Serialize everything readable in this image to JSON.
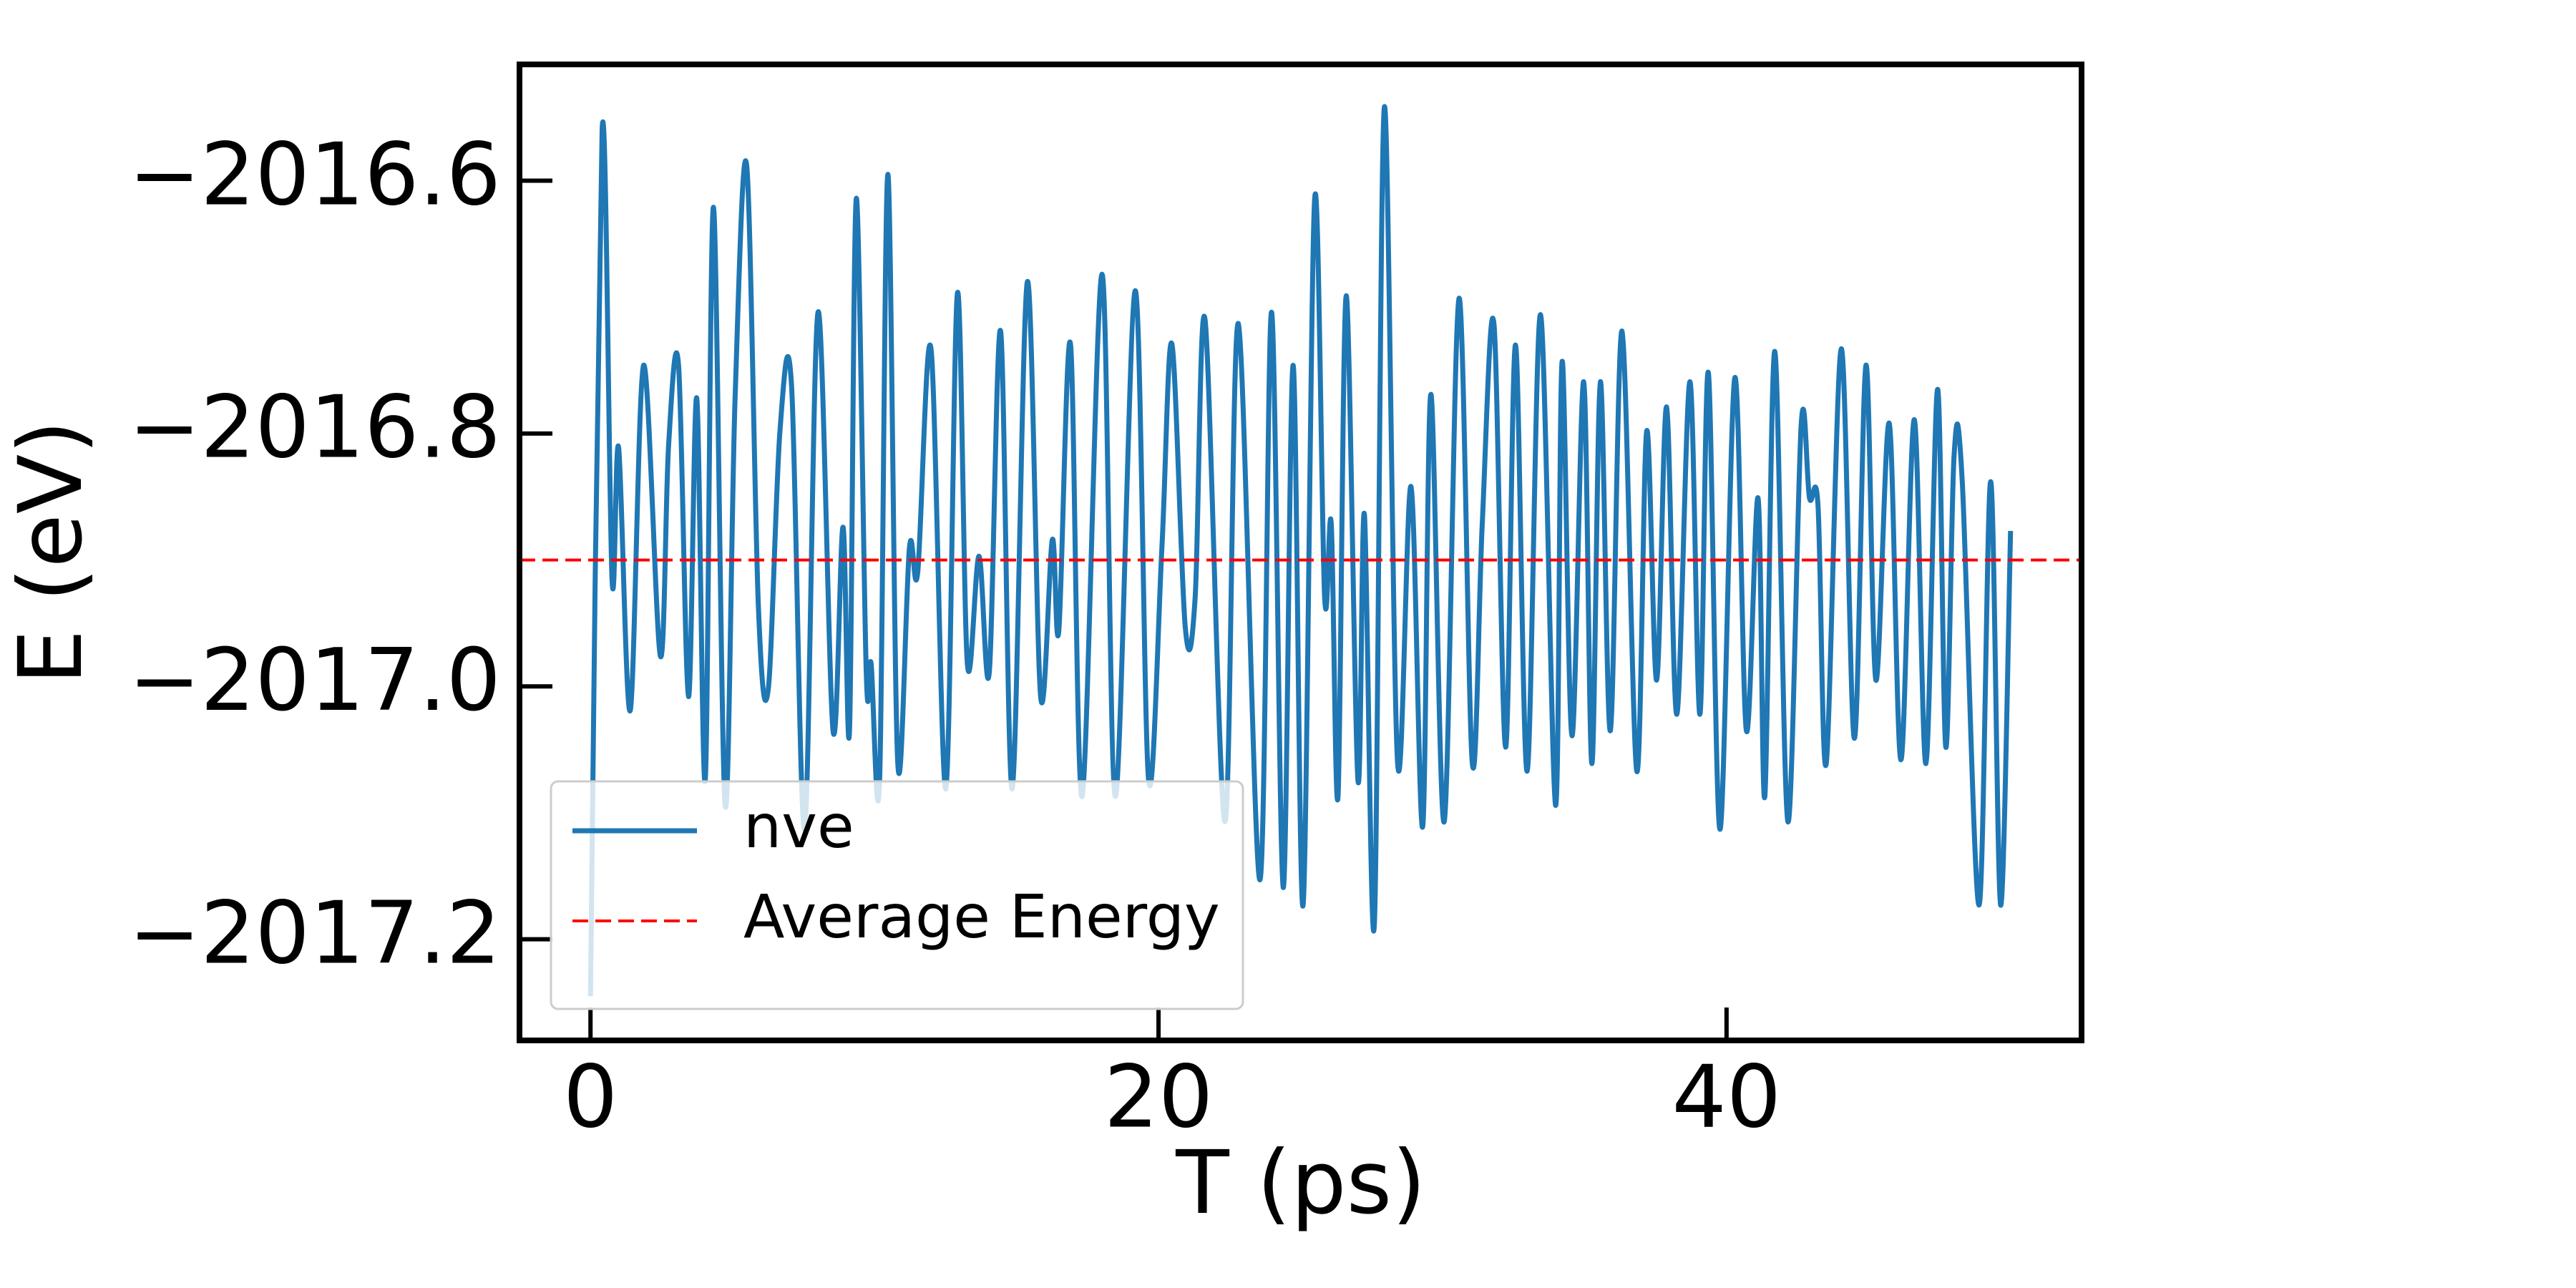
{
  "chart_data": {
    "type": "line",
    "xlabel": "T (ps)",
    "ylabel": "E (eV)",
    "xlim": [
      -2.5,
      52.5
    ],
    "ylim": [
      -2017.28,
      -2016.508
    ],
    "xticks": [
      0,
      20,
      40
    ],
    "yticks": [
      {
        "value": -2017.2,
        "label": "−2017.2"
      },
      {
        "value": -2017.0,
        "label": "−2017.0"
      },
      {
        "value": -2016.8,
        "label": "−2016.8"
      },
      {
        "value": -2016.6,
        "label": "−2016.6"
      }
    ],
    "legend": "lower left",
    "x": [
      0,
      0.41,
      0.76,
      0.99,
      1.4,
      1.87,
      2.46,
      2.75,
      3.1,
      3.45,
      3.74,
      4.04,
      4.33,
      4.74,
      5.09,
      5.5,
      5.91,
      6.26,
      6.67,
      7.08,
      7.54,
      8.01,
      8.54,
      8.89,
      9.12,
      9.36,
      9.71,
      9.88,
      10.18,
      10.47,
      10.82,
      11.23,
      11.52,
      11.99,
      12.51,
      12.92,
      13.27,
      13.68,
      14.04,
      14.44,
      14.85,
      15.38,
      15.85,
      16.26,
      16.49,
      16.9,
      17.31,
      18.01,
      18.48,
      19.18,
      19.65,
      20.12,
      20.47,
      20.94,
      21.29,
      21.64,
      22.34,
      22.81,
      23.57,
      23.98,
      24.39,
      24.74,
      25.09,
      25.5,
      25.85,
      26.08,
      26.32,
      26.61,
      27.02,
      27.25,
      27.6,
      27.95,
      28.42,
      28.89,
      29.3,
      29.59,
      30.06,
      30.58,
      31.05,
      31.4,
      31.81,
      32.22,
      32.57,
      32.98,
      33.45,
      33.98,
      34.21,
      34.56,
      34.97,
      35.26,
      35.56,
      35.91,
      36.32,
      36.84,
      37.19,
      37.54,
      37.89,
      38.25,
      38.71,
      39.06,
      39.36,
      39.77,
      40.29,
      40.7,
      41.11,
      41.35,
      41.7,
      42.16,
      42.63,
      42.92,
      43.22,
      43.51,
      44.04,
      44.5,
      44.91,
      45.26,
      45.73,
      46.14,
      46.61,
      47.02,
      47.43,
      47.72,
      48.01,
      48.3,
      48.89,
      49.3,
      49.65,
      50
    ],
    "series": [
      {
        "name": "nve",
        "color": "#1f77b4",
        "style": "solid",
        "values": [
          -2017.245,
          -2016.559,
          -2016.916,
          -2016.811,
          -2017.019,
          -2016.746,
          -2016.976,
          -2016.809,
          -2016.746,
          -2017.008,
          -2016.772,
          -2017.074,
          -2016.621,
          -2017.094,
          -2016.772,
          -2016.588,
          -2016.936,
          -2017.002,
          -2016.798,
          -2016.762,
          -2017.113,
          -2016.704,
          -2017.035,
          -2016.874,
          -2017.035,
          -2016.614,
          -2016.989,
          -2016.982,
          -2017.074,
          -2016.595,
          -2017.061,
          -2016.89,
          -2016.91,
          -2016.733,
          -2017.081,
          -2016.689,
          -2016.982,
          -2016.897,
          -2016.989,
          -2016.719,
          -2017.081,
          -2016.68,
          -2017.008,
          -2016.884,
          -2016.956,
          -2016.729,
          -2017.087,
          -2016.674,
          -2017.087,
          -2016.687,
          -2017.074,
          -2016.89,
          -2016.729,
          -2016.953,
          -2016.93,
          -2016.71,
          -2017.107,
          -2016.713,
          -2017.153,
          -2016.704,
          -2017.159,
          -2016.746,
          -2017.173,
          -2016.614,
          -2016.93,
          -2016.871,
          -2017.087,
          -2016.691,
          -2017.074,
          -2016.864,
          -2017.188,
          -2016.542,
          -2017.061,
          -2016.842,
          -2017.111,
          -2016.769,
          -2017.107,
          -2016.693,
          -2017.061,
          -2016.871,
          -2016.713,
          -2017.048,
          -2016.73,
          -2017.067,
          -2016.706,
          -2017.094,
          -2016.743,
          -2017.039,
          -2016.759,
          -2017.061,
          -2016.759,
          -2017.035,
          -2016.719,
          -2017.067,
          -2016.798,
          -2016.995,
          -2016.779,
          -2017.022,
          -2016.759,
          -2017.022,
          -2016.752,
          -2017.113,
          -2016.756,
          -2017.035,
          -2016.851,
          -2017.087,
          -2016.735,
          -2017.107,
          -2016.792,
          -2016.851,
          -2016.857,
          -2017.061,
          -2016.733,
          -2017.041,
          -2016.746,
          -2016.995,
          -2016.792,
          -2017.058,
          -2016.789,
          -2017.061,
          -2016.765,
          -2017.048,
          -2016.818,
          -2016.838,
          -2017.173,
          -2016.838,
          -2017.173,
          -2016.877
        ]
      }
    ],
    "hlines": [
      {
        "name": "Average Energy",
        "color": "#ff0000",
        "style": "dashed",
        "value": -2016.9
      }
    ]
  }
}
